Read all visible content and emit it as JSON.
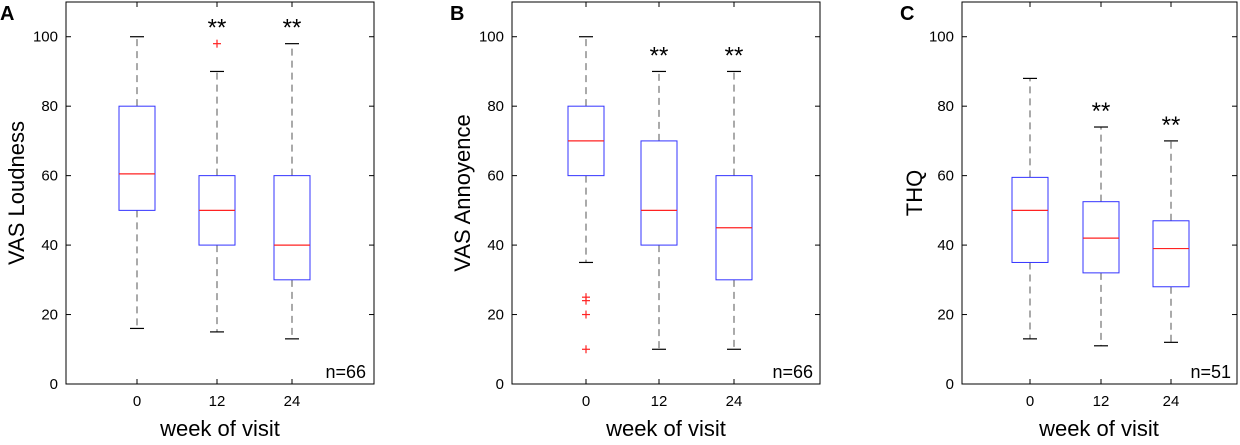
{
  "chart_data": [
    {
      "type": "boxplot",
      "panel": "A",
      "ylabel": "VAS Loudness",
      "xlabel": "week of visit",
      "categories": [
        "0",
        "12",
        "24"
      ],
      "ylim": [
        0,
        110
      ],
      "yticks": [
        0,
        20,
        40,
        60,
        80,
        100
      ],
      "n_label": "n=66",
      "boxes": [
        {
          "category": "0",
          "whisker_low": 16,
          "q1": 50,
          "median": 60.5,
          "q3": 80,
          "whisker_high": 100,
          "outliers": [],
          "significance": ""
        },
        {
          "category": "12",
          "whisker_low": 15,
          "q1": 40,
          "median": 50,
          "q3": 60,
          "whisker_high": 90,
          "outliers": [
            98
          ],
          "significance": "**"
        },
        {
          "category": "24",
          "whisker_low": 13,
          "q1": 30,
          "median": 40,
          "q3": 60,
          "whisker_high": 98,
          "outliers": [],
          "significance": "**"
        }
      ]
    },
    {
      "type": "boxplot",
      "panel": "B",
      "ylabel": "VAS Annoyence",
      "xlabel": "week of visit",
      "categories": [
        "0",
        "12",
        "24"
      ],
      "ylim": [
        0,
        110
      ],
      "yticks": [
        0,
        20,
        40,
        60,
        80,
        100
      ],
      "n_label": "n=66",
      "boxes": [
        {
          "category": "0",
          "whisker_low": 35,
          "q1": 60,
          "median": 70,
          "q3": 80,
          "whisker_high": 100,
          "outliers": [
            25,
            24,
            20,
            10
          ],
          "significance": ""
        },
        {
          "category": "12",
          "whisker_low": 10,
          "q1": 40,
          "median": 50,
          "q3": 70,
          "whisker_high": 90,
          "outliers": [],
          "significance": "**"
        },
        {
          "category": "24",
          "whisker_low": 10,
          "q1": 30,
          "median": 45,
          "q3": 60,
          "whisker_high": 90,
          "outliers": [],
          "significance": "**"
        }
      ]
    },
    {
      "type": "boxplot",
      "panel": "C",
      "ylabel": "THQ",
      "xlabel": "week of visit",
      "categories": [
        "0",
        "12",
        "24"
      ],
      "ylim": [
        0,
        110
      ],
      "yticks": [
        0,
        20,
        40,
        60,
        80,
        100
      ],
      "n_label": "n=51",
      "boxes": [
        {
          "category": "0",
          "whisker_low": 13,
          "q1": 35,
          "median": 50,
          "q3": 59.5,
          "whisker_high": 88,
          "outliers": [],
          "significance": ""
        },
        {
          "category": "12",
          "whisker_low": 11,
          "q1": 32,
          "median": 42,
          "q3": 52.5,
          "whisker_high": 74,
          "outliers": [],
          "significance": "**"
        },
        {
          "category": "24",
          "whisker_low": 12,
          "q1": 28,
          "median": 39,
          "q3": 47,
          "whisker_high": 70,
          "outliers": [],
          "significance": "**"
        }
      ]
    }
  ]
}
